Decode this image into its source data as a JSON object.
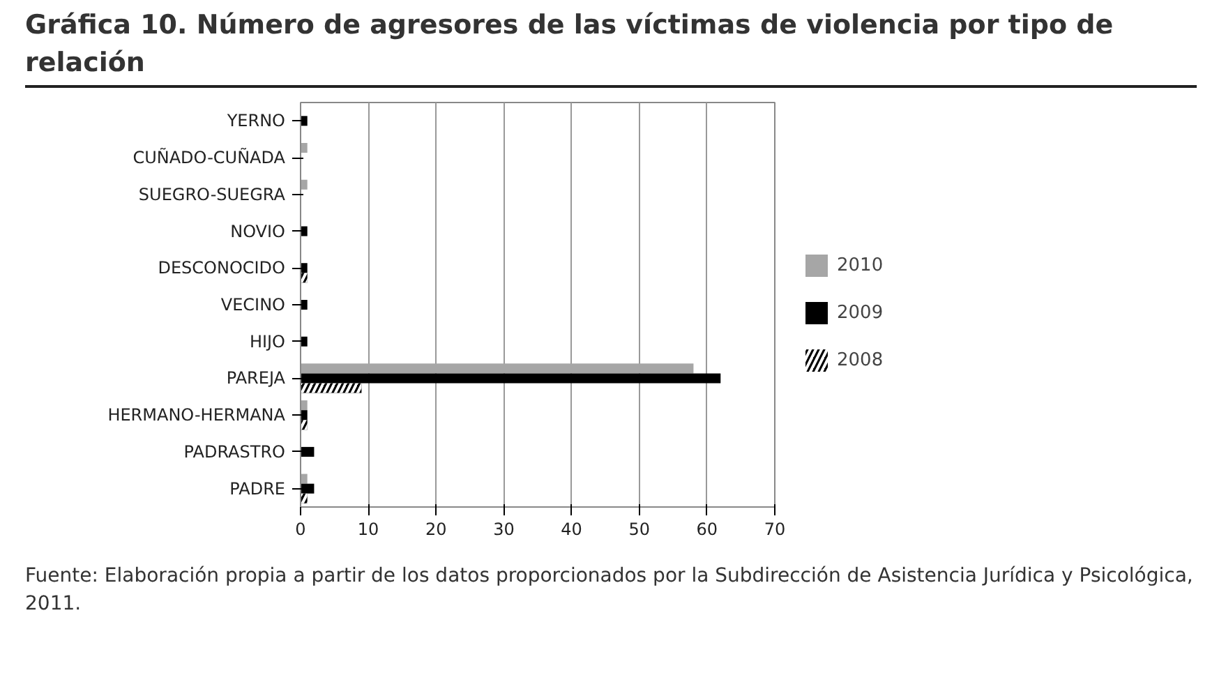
{
  "chart_data": {
    "type": "bar",
    "orientation": "horizontal",
    "title": "Gráfica 10. Número de agresores de las víctimas de violencia por tipo de relación",
    "categories": [
      "YERNO",
      "CUÑADO-CUÑADA",
      "SUEGRO-SUEGRA",
      "NOVIO",
      "DESCONOCIDO",
      "VECINO",
      "HIJO",
      "PAREJA",
      "HERMANO-HERMANA",
      "PADRASTRO",
      "PADRE"
    ],
    "series": [
      {
        "name": "2010",
        "color": "#a6a6a6",
        "values": [
          null,
          1,
          1,
          null,
          null,
          null,
          null,
          58,
          1,
          null,
          1
        ]
      },
      {
        "name": "2009",
        "color": "#000000",
        "values": [
          1,
          null,
          null,
          1,
          1,
          1,
          1,
          62,
          1,
          2,
          2
        ]
      },
      {
        "name": "2008",
        "color": "#000000",
        "values": [
          null,
          null,
          null,
          null,
          1,
          null,
          null,
          9,
          1,
          null,
          1
        ]
      }
    ],
    "xlim": [
      0,
      70
    ],
    "xticks": [
      0,
      10,
      20,
      30,
      40,
      50,
      60,
      70
    ],
    "grid": "x",
    "legend": "right",
    "annotations": [
      "Fuente: Elaboración propia a partir de los datos proporcionados por la Subdirección de Asistencia Jurídica y Psicológica, 2011."
    ]
  }
}
